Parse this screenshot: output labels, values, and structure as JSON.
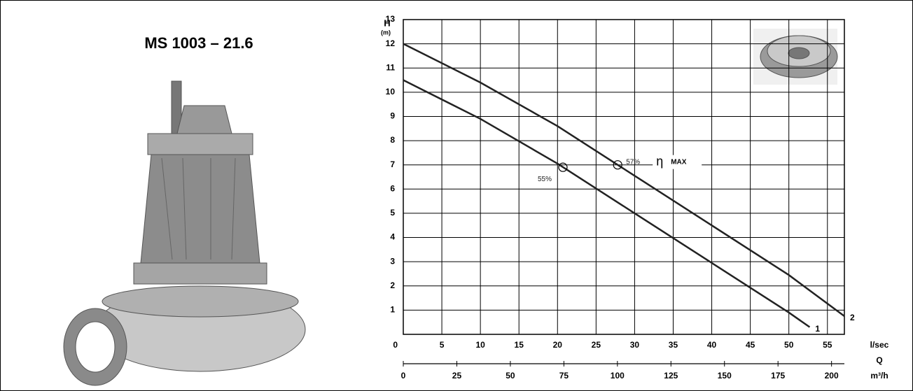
{
  "chart_data": {
    "type": "line",
    "title": "MS 1003 – 21.6",
    "y_label": "H",
    "y_unit": "(m)",
    "x_label": "l/sec",
    "x2_label": "Q",
    "x2_unit": "m³/h",
    "xlim": [
      0,
      57.2
    ],
    "xticks": [
      5,
      10,
      15,
      20,
      25,
      30,
      35,
      40,
      45,
      50,
      55
    ],
    "x2lim": [
      0,
      206
    ],
    "x2ticks": [
      0,
      25,
      50,
      75,
      100,
      125,
      150,
      175,
      200
    ],
    "ylim": [
      0,
      13
    ],
    "yticks": [
      0,
      1,
      2,
      3,
      4,
      5,
      6,
      7,
      8,
      9,
      10,
      11,
      12,
      13
    ],
    "grid": true,
    "series": [
      {
        "name": "1",
        "color": "#222222",
        "x": [
          0,
          10,
          20,
          30,
          40,
          50,
          52.7
        ],
        "values": [
          10.5,
          8.9,
          7.05,
          5.0,
          2.95,
          0.9,
          0.3
        ]
      },
      {
        "name": "2",
        "color": "#222222",
        "x": [
          0,
          10,
          20,
          27.8,
          30,
          40,
          50,
          57.2
        ],
        "values": [
          12,
          10.4,
          8.6,
          7.0,
          6.55,
          4.5,
          2.45,
          0.75
        ]
      }
    ],
    "annotations": [
      {
        "x": 20.7,
        "y": 6.9,
        "label": "55%"
      },
      {
        "x": 27.8,
        "y": 7.0,
        "label": "57%"
      }
    ],
    "efficiency_symbol": "η",
    "efficiency_text": "MAX"
  }
}
